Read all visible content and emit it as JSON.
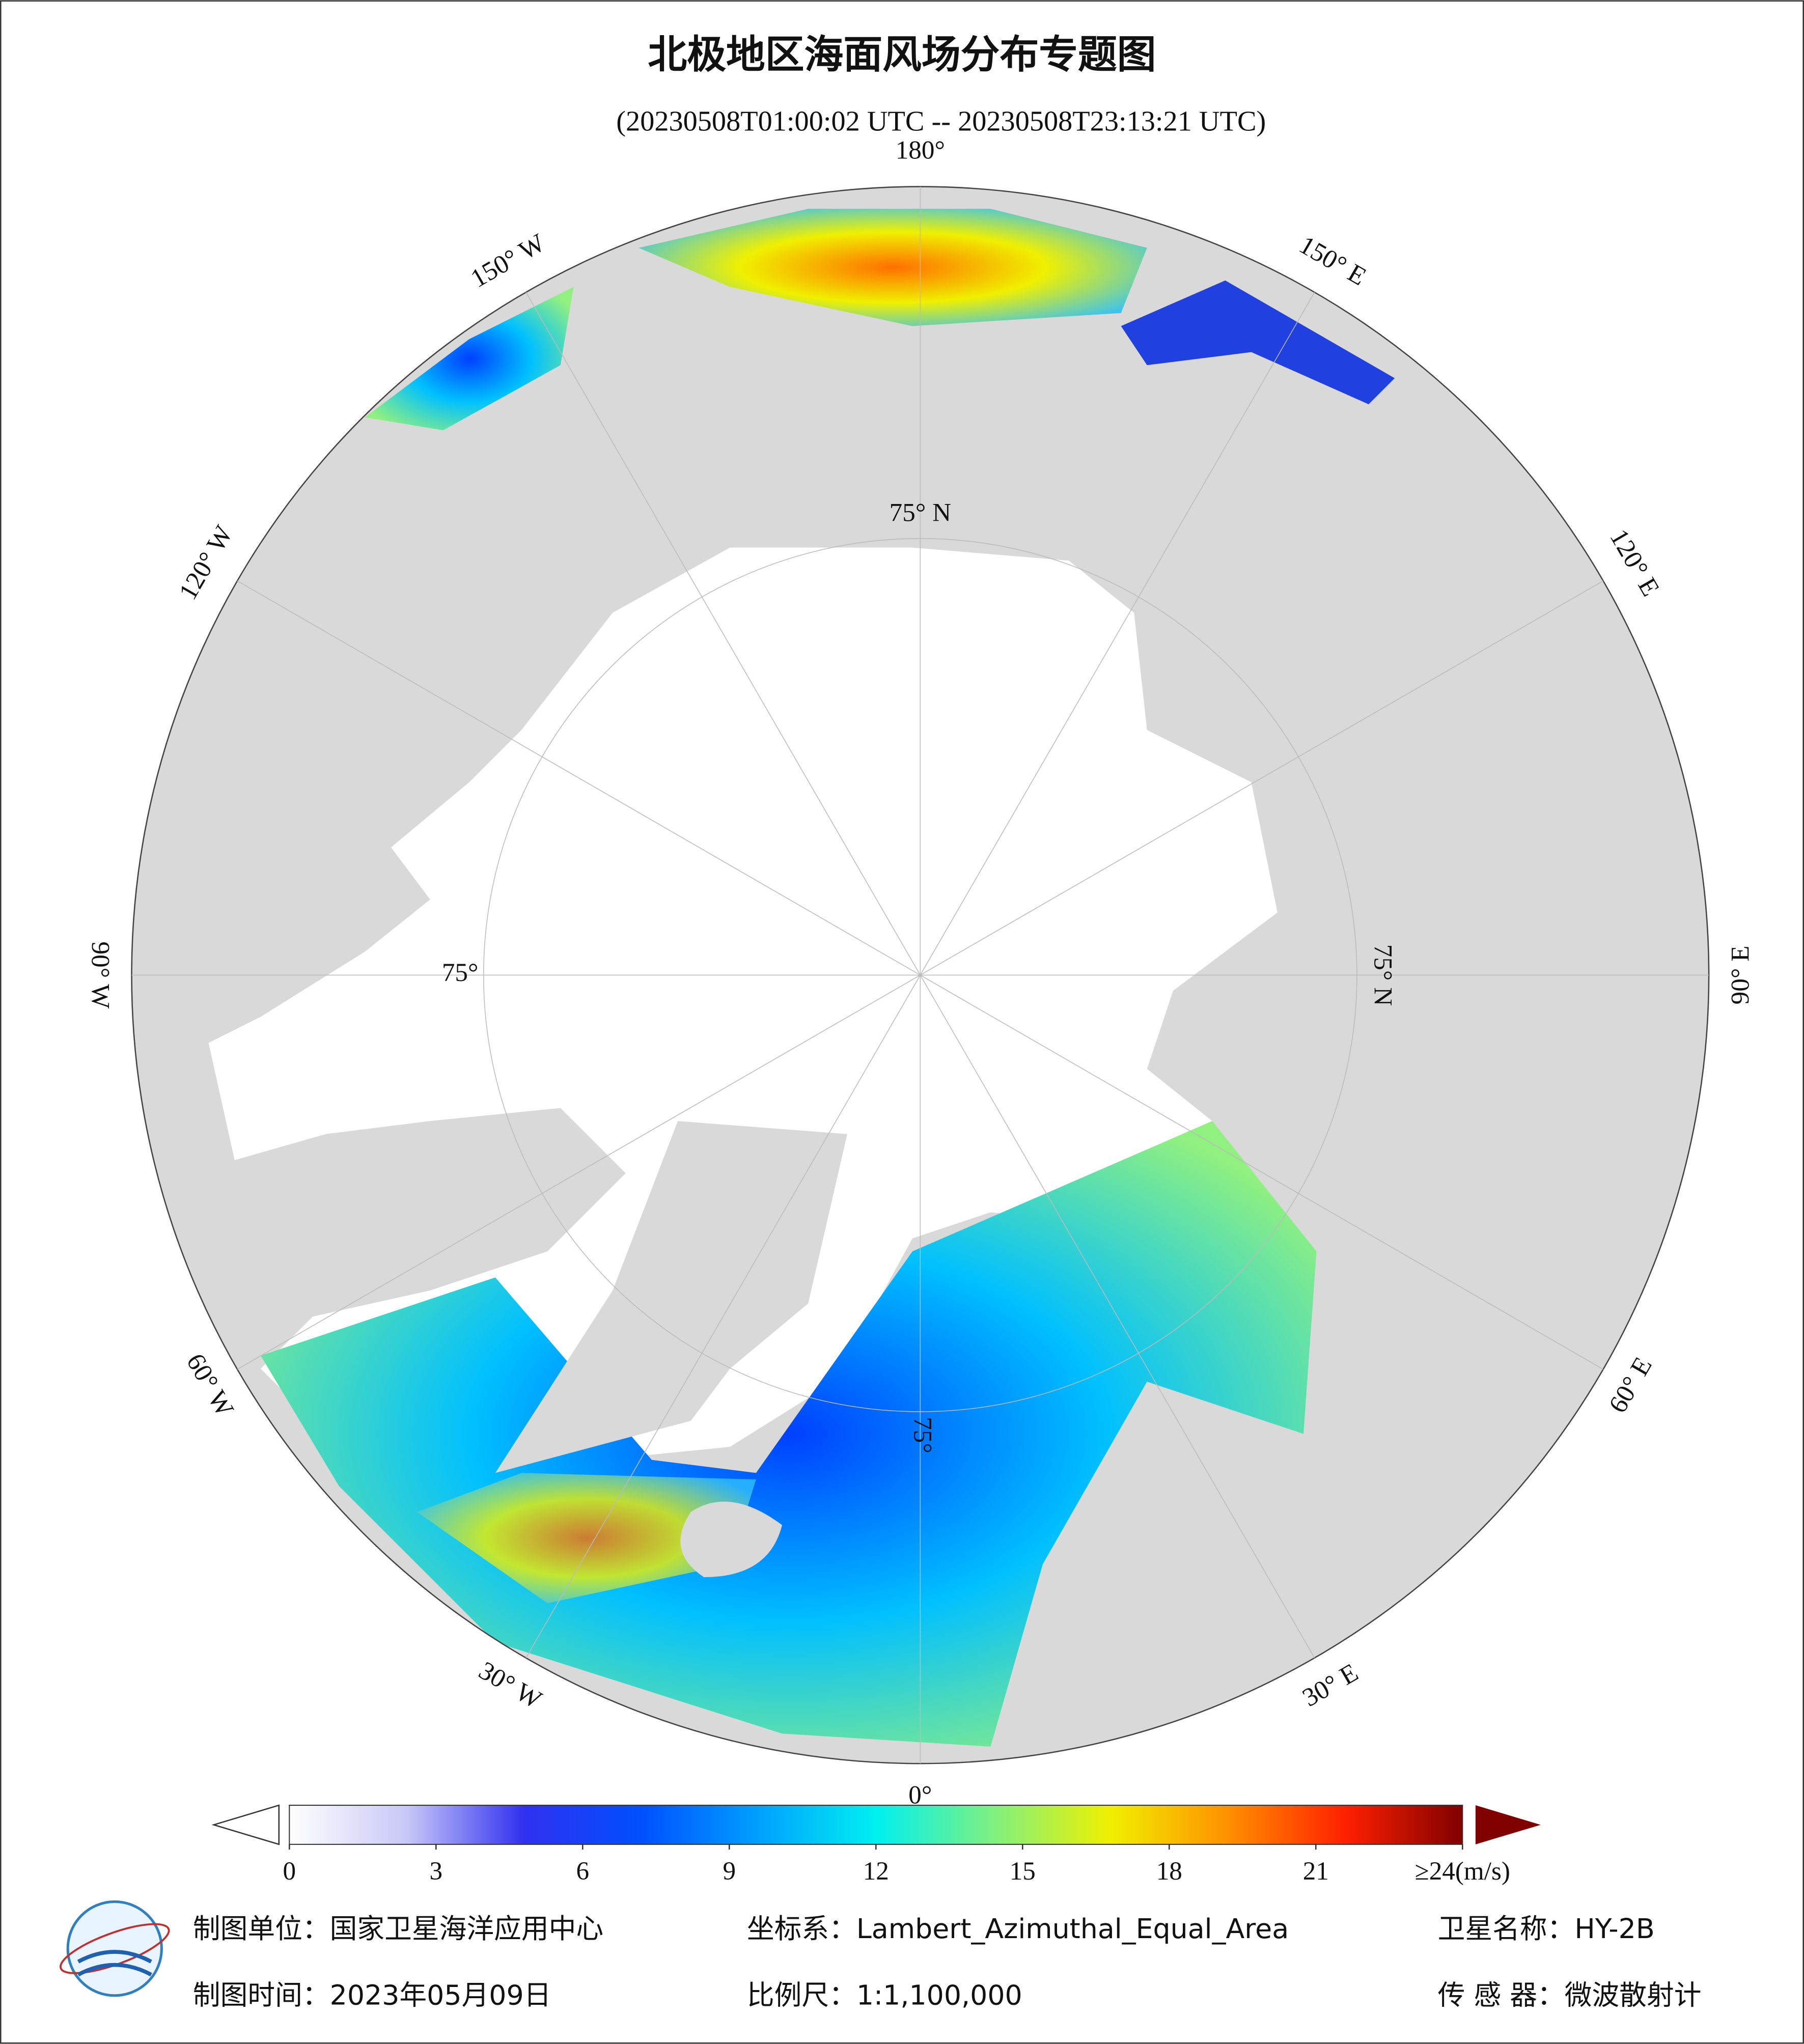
{
  "header": {
    "title": "北极地区海面风场分布专题图",
    "subtitle": "(20230508T01:00:02 UTC -- 20230508T23:13:21 UTC)"
  },
  "map": {
    "longitude_labels": [
      "0°",
      "30° E",
      "60° E",
      "90° E",
      "120° E",
      "150° E",
      "180°",
      "150° W",
      "120° W",
      "90° W",
      "60° W",
      "30° W"
    ],
    "latitude_labels": [
      "75° N",
      "75° N",
      "75°",
      "75°"
    ]
  },
  "colorbar": {
    "lim": [
      0,
      24
    ],
    "ticks": [
      0,
      3,
      6,
      9,
      12,
      15,
      18,
      21,
      {
        "value": 24,
        "label": "≥24(m/s)"
      }
    ],
    "colors": [
      "#ffffff",
      "#c8c8f8",
      "#3030f0",
      "#0050ff",
      "#00a0ff",
      "#00f0f0",
      "#80f080",
      "#f0f000",
      "#ff9000",
      "#ff2000",
      "#800000"
    ]
  },
  "footer": {
    "unit": "制图单位：国家卫星海洋应用中心",
    "date": "制图时间：2023年05月09日",
    "crs": "坐标系：Lambert_Azimuthal_Equal_Area",
    "scale": "比例尺：1:1,100,000",
    "satellite": "卫星名称：HY-2B",
    "sensor": "传 感 器：微波散射计"
  }
}
